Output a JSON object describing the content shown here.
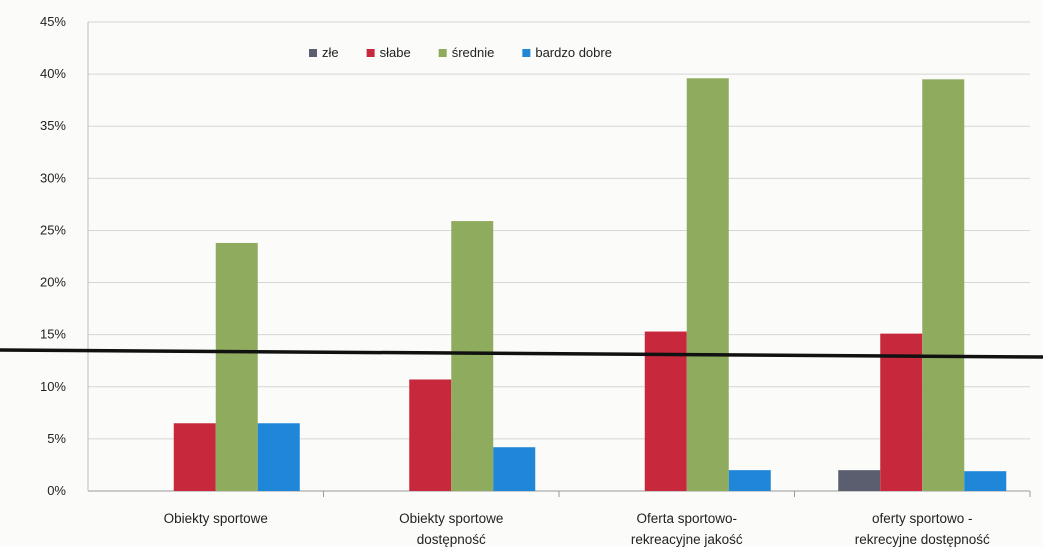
{
  "chart_data": {
    "type": "bar",
    "title": "",
    "xlabel": "",
    "ylabel": "",
    "categories": [
      [
        "Obiekty sportowe"
      ],
      [
        "Obiekty sportowe",
        "dostępność"
      ],
      [
        "Oferta sportowo-",
        "rekreacyjne jakość"
      ],
      [
        "oferty sportowo -",
        "rekrecyjne dostępność"
      ]
    ],
    "series": [
      {
        "name": "złe",
        "color": "#5a5e6e",
        "values": [
          0,
          0,
          0,
          2
        ]
      },
      {
        "name": "słabe",
        "color": "#c8283c",
        "values": [
          6.5,
          10.7,
          15.3,
          15.1
        ]
      },
      {
        "name": "średnie",
        "color": "#8fac5e",
        "values": [
          23.8,
          25.9,
          39.6,
          39.5
        ]
      },
      {
        "name": "bardzo dobre",
        "color": "#1f86d8",
        "values": [
          6.5,
          4.2,
          2,
          1.9
        ]
      }
    ],
    "ylim": [
      0,
      45
    ],
    "yticks": [
      0,
      5,
      10,
      15,
      20,
      25,
      30,
      35,
      40,
      45
    ],
    "ytick_format": "%",
    "grid": true,
    "legend_position": "top-center"
  }
}
